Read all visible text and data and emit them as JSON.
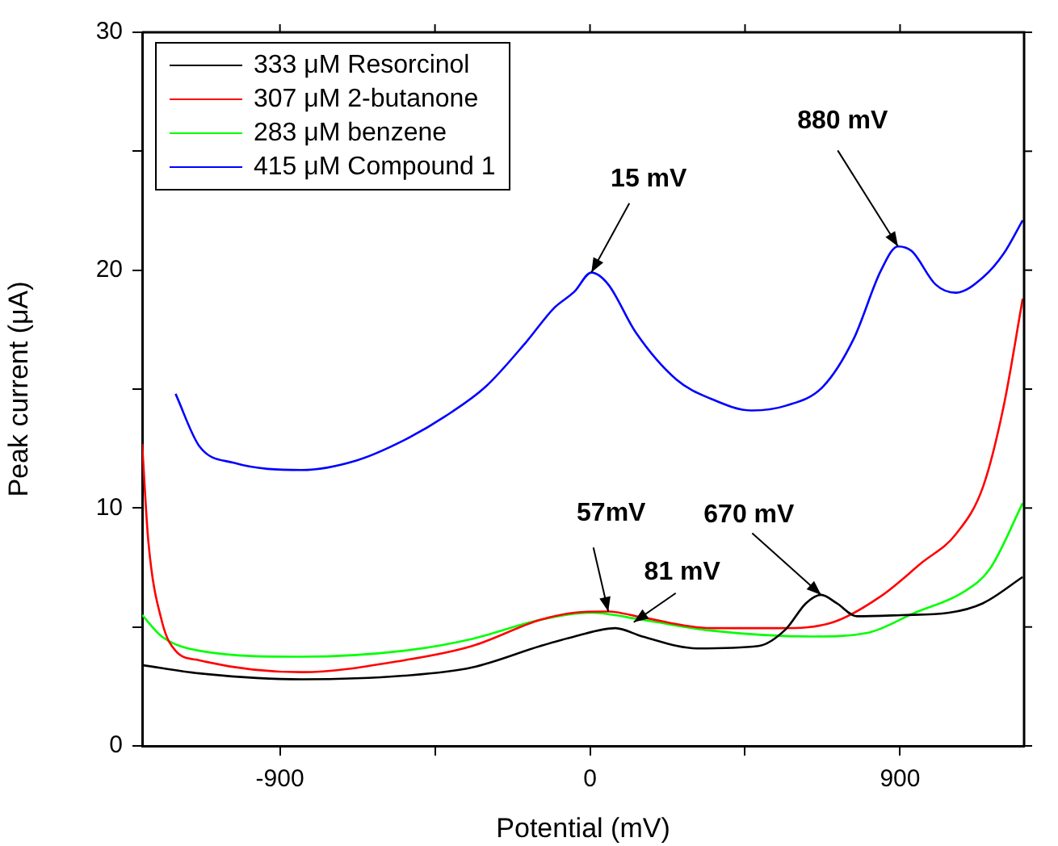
{
  "chart_data": {
    "type": "line",
    "xlabel": "Potential (mV)",
    "ylabel": "Peak current (μA)",
    "xlim": [
      -1300,
      1260
    ],
    "xticks": [
      -900,
      {
        "value": -450,
        "label": null
      },
      0,
      {
        "value": 450,
        "label": null
      },
      900
    ],
    "ylim": [
      0,
      30
    ],
    "yticks": [
      0,
      {
        "value": 5,
        "label": null
      },
      10,
      {
        "value": 15,
        "label": null
      },
      20,
      {
        "value": 25,
        "label": null
      },
      30
    ],
    "grid": false,
    "legend": "top left",
    "marker": "none",
    "line_style": "solid",
    "series": [
      {
        "name": "333 μM Resorcinol",
        "color": "#000000",
        "x": [
          -1300,
          -1134,
          -837,
          -540,
          -342,
          -144,
          -45,
          73,
          152,
          311,
          489,
          568,
          627,
          671,
          716,
          775,
          904,
          1042,
          1141,
          1256
        ],
        "values": [
          3.4,
          3.05,
          2.8,
          2.95,
          3.3,
          4.2,
          4.6,
          4.95,
          4.6,
          4.1,
          4.2,
          4.9,
          6.0,
          6.35,
          6.0,
          5.45,
          5.5,
          5.6,
          6.0,
          7.1
        ]
      },
      {
        "name": "307 μM 2-butanone",
        "color": "#ff0000",
        "x": [
          -1300,
          -1282,
          -1242,
          -1203,
          -1134,
          -837,
          -540,
          -342,
          -144,
          -45,
          53,
          152,
          350,
          548,
          706,
          845,
          963,
          1062,
          1141,
          1201,
          1256
        ],
        "values": [
          12.7,
          8.6,
          5.2,
          4.0,
          3.6,
          3.1,
          3.6,
          4.2,
          5.3,
          5.6,
          5.65,
          5.4,
          4.95,
          4.95,
          5.2,
          6.3,
          7.7,
          8.9,
          10.9,
          14.3,
          18.8
        ]
      },
      {
        "name": "283 μM benzene",
        "color": "#00ff00",
        "x": [
          -1300,
          -1243,
          -1134,
          -837,
          -540,
          -342,
          -144,
          4,
          152,
          350,
          647,
          805,
          943,
          1082,
          1161,
          1256
        ],
        "values": [
          5.5,
          4.6,
          4.0,
          3.75,
          4.0,
          4.5,
          5.3,
          5.6,
          5.3,
          4.85,
          4.6,
          4.75,
          5.6,
          6.45,
          7.45,
          10.2
        ]
      },
      {
        "name": "415 μM Compound 1",
        "color": "#0000ff",
        "x": [
          -1203,
          -1134,
          -1034,
          -837,
          -678,
          -540,
          -421,
          -303,
          -184,
          -105,
          -45,
          4,
          53,
          132,
          251,
          350,
          469,
          568,
          676,
          765,
          845,
          894,
          934,
          1003,
          1062,
          1141,
          1201,
          1256
        ],
        "values": [
          14.8,
          12.6,
          11.9,
          11.6,
          12.0,
          12.85,
          13.85,
          15.1,
          17.0,
          18.4,
          19.1,
          19.9,
          19.4,
          17.4,
          15.4,
          14.6,
          14.1,
          14.3,
          15.1,
          17.1,
          20.0,
          21.0,
          20.8,
          19.4,
          19.05,
          19.7,
          20.7,
          22.1
        ]
      }
    ],
    "annotations": [
      {
        "text": "15 mV",
        "x": 4,
        "y": 19.9
      },
      {
        "text": "880 mV",
        "x": 894,
        "y": 21.0
      },
      {
        "text": "57mV",
        "x": 53,
        "y": 5.65
      },
      {
        "text": "81 mV",
        "x": 127,
        "y": 5.2
      },
      {
        "text": "670 mV",
        "x": 671,
        "y": 6.35
      }
    ]
  }
}
